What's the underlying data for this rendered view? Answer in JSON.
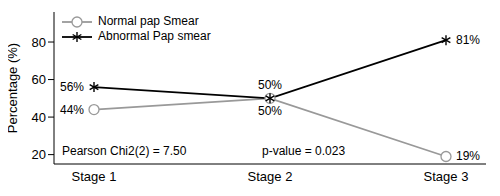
{
  "chart_data": {
    "type": "line",
    "categories": [
      "Stage 1",
      "Stage 2",
      "Stage 3"
    ],
    "y_label": "Percentage (%)",
    "ylim": [
      15,
      96
    ],
    "yticks": [
      20,
      40,
      60,
      80
    ],
    "grid": false,
    "legend": "upper left",
    "data_labels": true,
    "annotations": [
      "Pearson Chi2(2) = 7.50",
      "p-value = 0.023"
    ],
    "series": [
      {
        "name": "Normal pap Smear",
        "color": "#999999",
        "marker": "circle",
        "values": [
          44,
          50,
          19
        ],
        "value_labels": [
          "44%",
          "50%",
          "19%"
        ]
      },
      {
        "name": "Abnormal Pap smear",
        "color": "#000000",
        "marker": "star",
        "values": [
          56,
          50,
          81
        ],
        "value_labels": [
          "56%",
          "50%",
          "81%"
        ]
      }
    ]
  }
}
